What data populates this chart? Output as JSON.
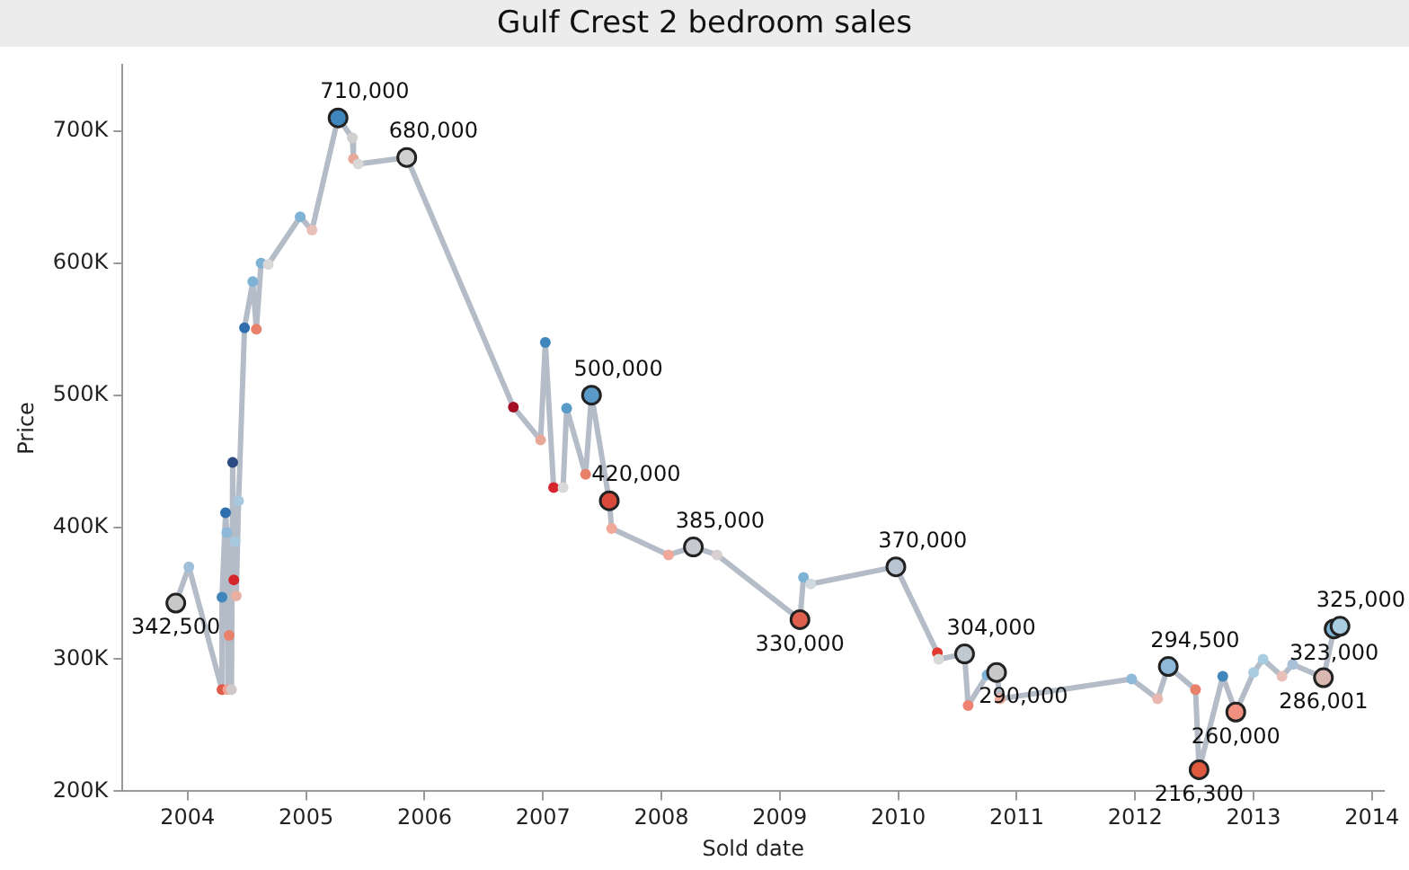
{
  "chart_data": {
    "type": "line",
    "title": "Gulf Crest 2 bedroom sales",
    "xlabel": "Sold date",
    "ylabel": "Price",
    "xlim": [
      2003.45,
      2014.1
    ],
    "xticks": [
      2004,
      2005,
      2006,
      2007,
      2008,
      2009,
      2010,
      2011,
      2012,
      2013,
      2014
    ],
    "ylim": [
      200000,
      750000
    ],
    "yticks": [
      {
        "value": 200000,
        "label": "200K"
      },
      {
        "value": 300000,
        "label": "300K"
      },
      {
        "value": 400000,
        "label": "400K"
      },
      {
        "value": 500000,
        "label": "500K"
      },
      {
        "value": 600000,
        "label": "600K"
      },
      {
        "value": 700000,
        "label": "700K"
      }
    ],
    "grid": false,
    "legend": false,
    "marker": "circle",
    "line_style": "solid",
    "series": [
      {
        "color": "#b4bcc8",
        "x": [
          2003.9,
          2004.01,
          2004.29,
          2004.29,
          2004.32,
          2004.33,
          2004.34,
          2004.35,
          2004.37,
          2004.38,
          2004.39,
          2004.4,
          2004.41,
          2004.43,
          2004.48,
          2004.55,
          2004.58,
          2004.62,
          2004.68,
          2004.95,
          2005.05,
          2005.27,
          2005.39,
          2005.4,
          2005.44,
          2005.85,
          2006.75,
          2006.98,
          2007.02,
          2007.09,
          2007.17,
          2007.2,
          2007.36,
          2007.41,
          2007.56,
          2007.58,
          2008.06,
          2008.27,
          2008.47,
          2009.17,
          2009.2,
          2009.26,
          2009.98,
          2010.33,
          2010.34,
          2010.56,
          2010.59,
          2010.75,
          2010.83,
          2010.86,
          2011.97,
          2012.19,
          2012.28,
          2012.51,
          2012.54,
          2012.74,
          2012.85,
          2013.0,
          2013.08,
          2013.24,
          2013.33,
          2013.59,
          2013.68,
          2013.73
        ],
        "values": [
          342500,
          370000,
          277000,
          347000,
          411000,
          396000,
          277000,
          318000,
          277000,
          449000,
          360000,
          389000,
          348000,
          420000,
          551000,
          586000,
          550000,
          600000,
          599000,
          635000,
          625000,
          710000,
          695000,
          679000,
          675000,
          680000,
          491000,
          466000,
          540000,
          430000,
          430000,
          490000,
          440000,
          500000,
          420000,
          399000,
          379000,
          385000,
          379000,
          330000,
          362000,
          357000,
          370000,
          305000,
          300000,
          304000,
          265000,
          288000,
          290000,
          270000,
          285000,
          270000,
          294500,
          277000,
          216300,
          287000,
          260000,
          290000,
          300000,
          287000,
          296000,
          286001,
          323000,
          325000
        ],
        "colors": [
          "#c8c8c8",
          "#9dbfd9",
          "#e05a47",
          "#3f86bc",
          "#2f6ead",
          "#8fb9d9",
          "#f0a090",
          "#e8806a",
          "#d0c8c8",
          "#2a4a80",
          "#d6262b",
          "#a8c8e0",
          "#e8b0a0",
          "#a8c8e0",
          "#2f6ead",
          "#7fb3d5",
          "#e8806a",
          "#7fb3d5",
          "#d8d8d8",
          "#7fb3d5",
          "#e8c0b8",
          "#3f86bc",
          "#d0d0d0",
          "#e8a898",
          "#d8d8d8",
          "#d0d0d0",
          "#a50f25",
          "#e8a898",
          "#3f86bc",
          "#d6262b",
          "#d8d8d8",
          "#5a9ac8",
          "#e8806a",
          "#5a9ac8",
          "#d94a3a",
          "#f0a898",
          "#f0a898",
          "#c8c8d0",
          "#d8d0d0",
          "#e06050",
          "#7fb3d5",
          "#d0d8e0",
          "#b8c4d0",
          "#e03a30",
          "#d8d8d8",
          "#c0c8d0",
          "#f08070",
          "#7fb3d5",
          "#c8c8c8",
          "#f0a898",
          "#8fb9d9",
          "#e8b8b0",
          "#8fb9d9",
          "#e8806a",
          "#e05a40",
          "#3f86bc",
          "#f09080",
          "#a8cce0",
          "#a8cce0",
          "#e8c0b8",
          "#a8c0d8",
          "#d8b8b0",
          "#7fb3d5",
          "#a8cce0"
        ],
        "value_labels": [
          "342,500",
          null,
          null,
          null,
          null,
          null,
          null,
          null,
          null,
          null,
          null,
          null,
          null,
          null,
          null,
          null,
          null,
          null,
          null,
          null,
          null,
          "710,000",
          null,
          null,
          null,
          "680,000",
          null,
          null,
          null,
          null,
          null,
          null,
          null,
          "500,000",
          "420,000",
          null,
          null,
          "385,000",
          null,
          "330,000",
          null,
          null,
          "370,000",
          null,
          null,
          "304,000",
          null,
          null,
          "290,000",
          null,
          null,
          null,
          "294,500",
          null,
          "216,300",
          null,
          "260,000",
          null,
          null,
          null,
          null,
          "286,001",
          "323,000",
          "325,000"
        ]
      }
    ]
  }
}
